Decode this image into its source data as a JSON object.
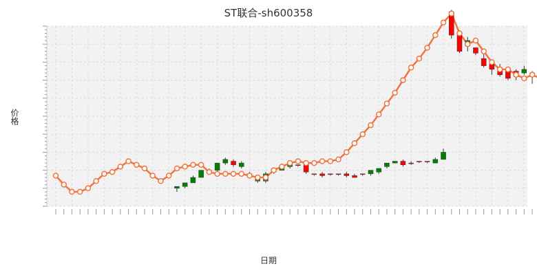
{
  "chart_data": {
    "type": "candlestick",
    "title": "ST联合-sh600358",
    "xlabel": "日期",
    "ylabel": "价格",
    "grid": true,
    "ylim": [
      0,
      100
    ],
    "series": [
      {
        "type": "line",
        "values": [
          17,
          12,
          8,
          8,
          10,
          14,
          18,
          19,
          22,
          25,
          23,
          21,
          17,
          14,
          17,
          21,
          22,
          23,
          23,
          19,
          18,
          18,
          18,
          18,
          17,
          16,
          16,
          20,
          22,
          24,
          25,
          24,
          24,
          25,
          25,
          26,
          30,
          35,
          40,
          45,
          51,
          57,
          63,
          70,
          77,
          82,
          88,
          95,
          102,
          107,
          96,
          90,
          92,
          86,
          80,
          76,
          76,
          73,
          71,
          73,
          71,
          67,
          68
        ]
      },
      {
        "type": "candlestick",
        "values": [
          [
            11,
            10,
            8,
            11
          ],
          [
            13,
            11,
            10,
            13
          ],
          [
            16,
            13,
            13,
            17
          ],
          [
            20,
            16,
            16,
            20
          ],
          [
            20,
            19,
            19,
            21
          ],
          [
            24,
            20,
            19,
            24
          ],
          [
            26,
            24,
            23,
            27
          ],
          [
            23,
            25,
            22,
            26
          ],
          [
            24,
            22,
            21,
            25
          ],
          [
            18,
            18,
            16,
            19
          ],
          [
            15,
            14,
            13,
            15
          ],
          [
            18,
            14,
            13,
            19
          ],
          [
            21,
            19,
            18,
            21
          ],
          [
            22,
            20,
            20,
            23
          ],
          [
            23,
            22,
            21,
            23
          ],
          [
            23,
            23,
            22,
            23
          ],
          [
            19,
            23,
            18,
            23
          ],
          [
            18,
            18,
            17,
            18
          ],
          [
            17,
            18,
            16,
            19
          ],
          [
            18,
            18,
            17,
            18
          ],
          [
            18,
            18,
            17,
            18
          ],
          [
            17,
            18,
            16,
            19
          ],
          [
            16,
            17,
            16,
            18
          ],
          [
            18,
            18,
            17,
            18
          ],
          [
            20,
            18,
            17,
            20
          ],
          [
            21,
            19,
            18,
            21
          ],
          [
            24,
            22,
            21,
            24
          ],
          [
            25,
            24,
            24,
            25
          ],
          [
            23,
            25,
            22,
            26
          ],
          [
            24,
            24,
            23,
            25
          ],
          [
            25,
            25,
            24,
            25
          ],
          [
            25,
            25,
            24,
            25
          ],
          [
            26,
            24,
            24,
            27
          ],
          [
            30,
            26,
            26,
            32
          ],
          [
            95,
            108,
            93,
            109
          ],
          [
            86,
            95,
            85,
            97
          ],
          [
            92,
            89,
            86,
            94
          ],
          [
            85,
            88,
            84,
            88
          ],
          [
            78,
            82,
            77,
            85
          ],
          [
            76,
            79,
            73,
            79
          ],
          [
            73,
            77,
            72,
            79
          ],
          [
            71,
            75,
            70,
            77
          ],
          [
            72,
            75,
            70,
            76
          ],
          [
            76,
            74,
            73,
            78
          ],
          [
            72,
            74,
            68,
            75
          ],
          [
            72,
            78,
            70,
            79
          ],
          [
            68,
            72,
            65,
            73
          ],
          [
            71,
            71,
            68,
            72
          ]
        ]
      }
    ]
  }
}
